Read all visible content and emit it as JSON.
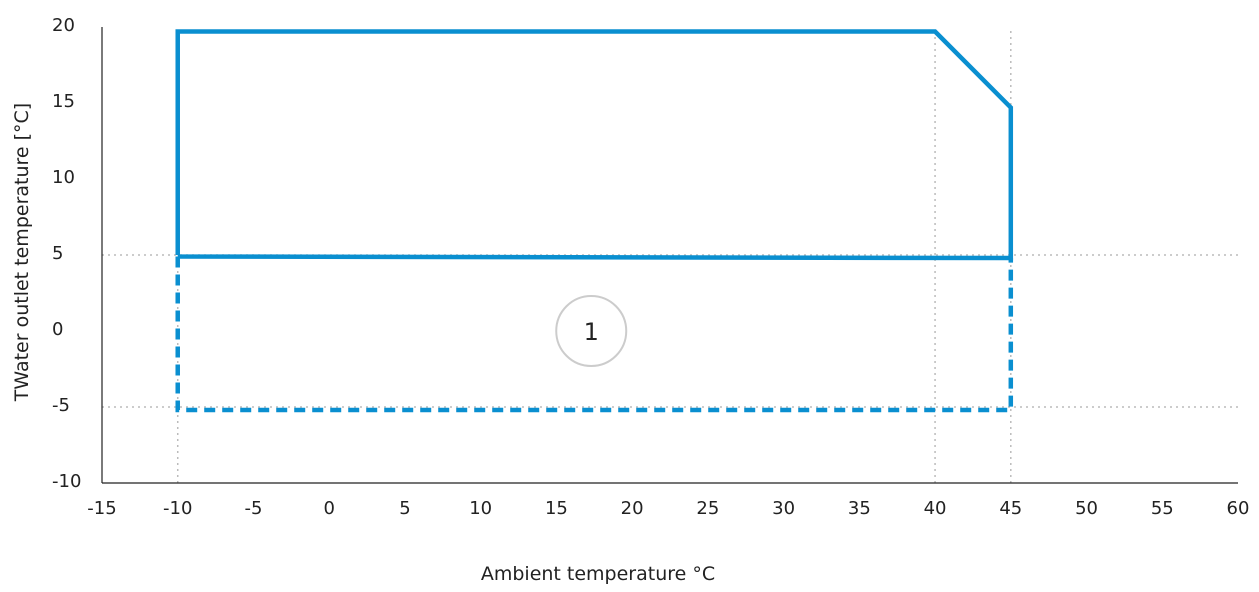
{
  "chart_data": {
    "type": "line",
    "title": "",
    "xlabel": "Ambient temperature °C",
    "ylabel": "TWater outlet temperature [°C]",
    "xlim": [
      -15,
      60
    ],
    "ylim": [
      -10,
      20
    ],
    "x_ticks": [
      "-15",
      "-10",
      "-5",
      "0",
      "5",
      "10",
      "15",
      "20",
      "25",
      "30",
      "35",
      "40",
      "45",
      "50",
      "55",
      "60"
    ],
    "y_ticks": [
      "20",
      "15",
      "10",
      "5",
      "0",
      "-5",
      "-10"
    ],
    "grid": "reference lines only (dotted)",
    "reference_lines": {
      "vertical": [
        -10,
        40,
        45
      ],
      "horizontal": [
        5,
        -5
      ]
    },
    "colors": {
      "envelope": "#0a8fd0",
      "reference": "#bbbbbb",
      "axis": "#222222",
      "annotation_circle": "#cccccc"
    },
    "series": [
      {
        "style": "solid",
        "x": [
          -10,
          -10,
          40,
          45,
          45,
          -10
        ],
        "y": [
          5,
          19.7,
          19.7,
          14.7,
          4.8,
          4.9
        ]
      },
      {
        "style": "dashed",
        "x": [
          -10,
          -10,
          45,
          45
        ],
        "y": [
          4.9,
          -5.2,
          -5.2,
          4.8
        ]
      }
    ],
    "annotations": [
      {
        "text": "1",
        "x": 17.3,
        "y": 0,
        "shape": "circle"
      }
    ]
  }
}
